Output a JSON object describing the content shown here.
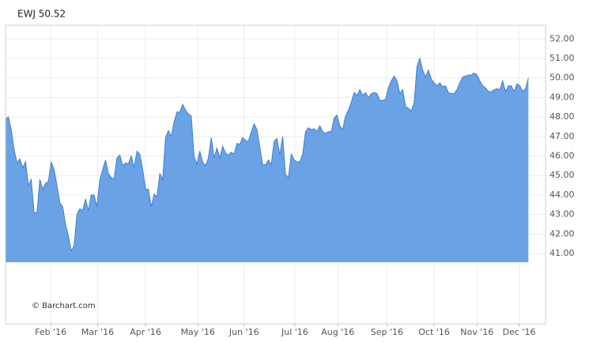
{
  "chart_data": {
    "type": "area",
    "title": "EWJ 50.52",
    "annotation": "© Barchart.com",
    "color": "#6aa2e6",
    "line_color": "#3f7fd0",
    "grid": true,
    "xlim": [
      0,
      189
    ],
    "ylim": [
      37.4,
      52.7
    ],
    "xticks": [
      {
        "value": 15.8,
        "label": "Feb '16"
      },
      {
        "value": 32.25,
        "label": "Mar '16"
      },
      {
        "value": 49,
        "label": "Apr '16"
      },
      {
        "value": 67.3,
        "label": "May '16"
      },
      {
        "value": 83.5,
        "label": "Jun '16"
      },
      {
        "value": 101.25,
        "label": "Jul '16"
      },
      {
        "value": 116.3,
        "label": "Aug '16"
      },
      {
        "value": 133.5,
        "label": "Sep '16"
      },
      {
        "value": 150,
        "label": "Oct '16"
      },
      {
        "value": 165,
        "label": "Nov '16"
      },
      {
        "value": 179.75,
        "label": "Dec '16"
      }
    ],
    "yticks": [
      {
        "value": 41,
        "label": "41.00"
      },
      {
        "value": 42,
        "label": "42.00"
      },
      {
        "value": 43,
        "label": "43.00"
      },
      {
        "value": 44,
        "label": "44.00"
      },
      {
        "value": 45,
        "label": "45.00"
      },
      {
        "value": 46,
        "label": "46.00"
      },
      {
        "value": 47,
        "label": "47.00"
      },
      {
        "value": 48,
        "label": "48.00"
      },
      {
        "value": 49,
        "label": "49.00"
      },
      {
        "value": 50,
        "label": "50.00"
      },
      {
        "value": 51,
        "label": "51.00"
      },
      {
        "value": 52,
        "label": "52.00"
      }
    ],
    "values": [
      47.87,
      48.0,
      47.35,
      46.34,
      45.65,
      45.85,
      45.4,
      45.7,
      44.5,
      44.8,
      43.1,
      43.1,
      44.8,
      44.3,
      44.6,
      44.7,
      45.7,
      45.3,
      44.5,
      43.6,
      43.4,
      42.5,
      41.9,
      41.15,
      41.4,
      43.0,
      43.3,
      43.2,
      43.8,
      43.2,
      44.0,
      44.0,
      43.4,
      44.8,
      45.3,
      45.8,
      45.1,
      44.9,
      44.8,
      45.9,
      46.05,
      45.5,
      45.65,
      45.6,
      46.0,
      45.4,
      46.25,
      46.1,
      45.3,
      44.3,
      44.3,
      43.4,
      44.05,
      43.9,
      45.1,
      44.8,
      46.95,
      47.3,
      47.0,
      47.75,
      48.25,
      48.25,
      48.65,
      48.35,
      48.15,
      48.05,
      45.95,
      45.6,
      46.25,
      45.7,
      45.5,
      45.9,
      46.95,
      45.9,
      46.4,
      45.9,
      46.5,
      46.15,
      46.05,
      46.2,
      46.1,
      46.65,
      46.6,
      46.95,
      46.8,
      46.75,
      47.25,
      47.65,
      47.35,
      46.45,
      45.55,
      45.55,
      45.8,
      45.55,
      46.75,
      46.9,
      46.05,
      47.0,
      45.05,
      44.9,
      46.1,
      45.8,
      45.7,
      45.7,
      46.1,
      47.25,
      47.45,
      47.35,
      47.4,
      47.25,
      47.55,
      47.25,
      47.15,
      47.25,
      47.25,
      47.95,
      48.1,
      47.55,
      47.35,
      48.05,
      48.35,
      48.75,
      49.25,
      49.1,
      49.4,
      49.1,
      49.25,
      49.0,
      49.2,
      49.25,
      49.2,
      48.85,
      48.85,
      48.9,
      49.5,
      49.85,
      50.1,
      49.85,
      49.2,
      49.4,
      48.55,
      48.45,
      48.3,
      48.75,
      50.6,
      51.0,
      50.4,
      50.05,
      50.4,
      49.95,
      49.75,
      49.6,
      49.75,
      49.55,
      49.6,
      49.25,
      49.2,
      49.2,
      49.4,
      49.75,
      50.05,
      50.1,
      50.15,
      50.15,
      50.25,
      50.15,
      49.85,
      49.6,
      49.5,
      49.3,
      49.3,
      49.4,
      49.45,
      49.4,
      49.85,
      49.3,
      49.6,
      49.6,
      49.3,
      49.7,
      49.6,
      49.3,
      49.45,
      50.0
    ]
  }
}
